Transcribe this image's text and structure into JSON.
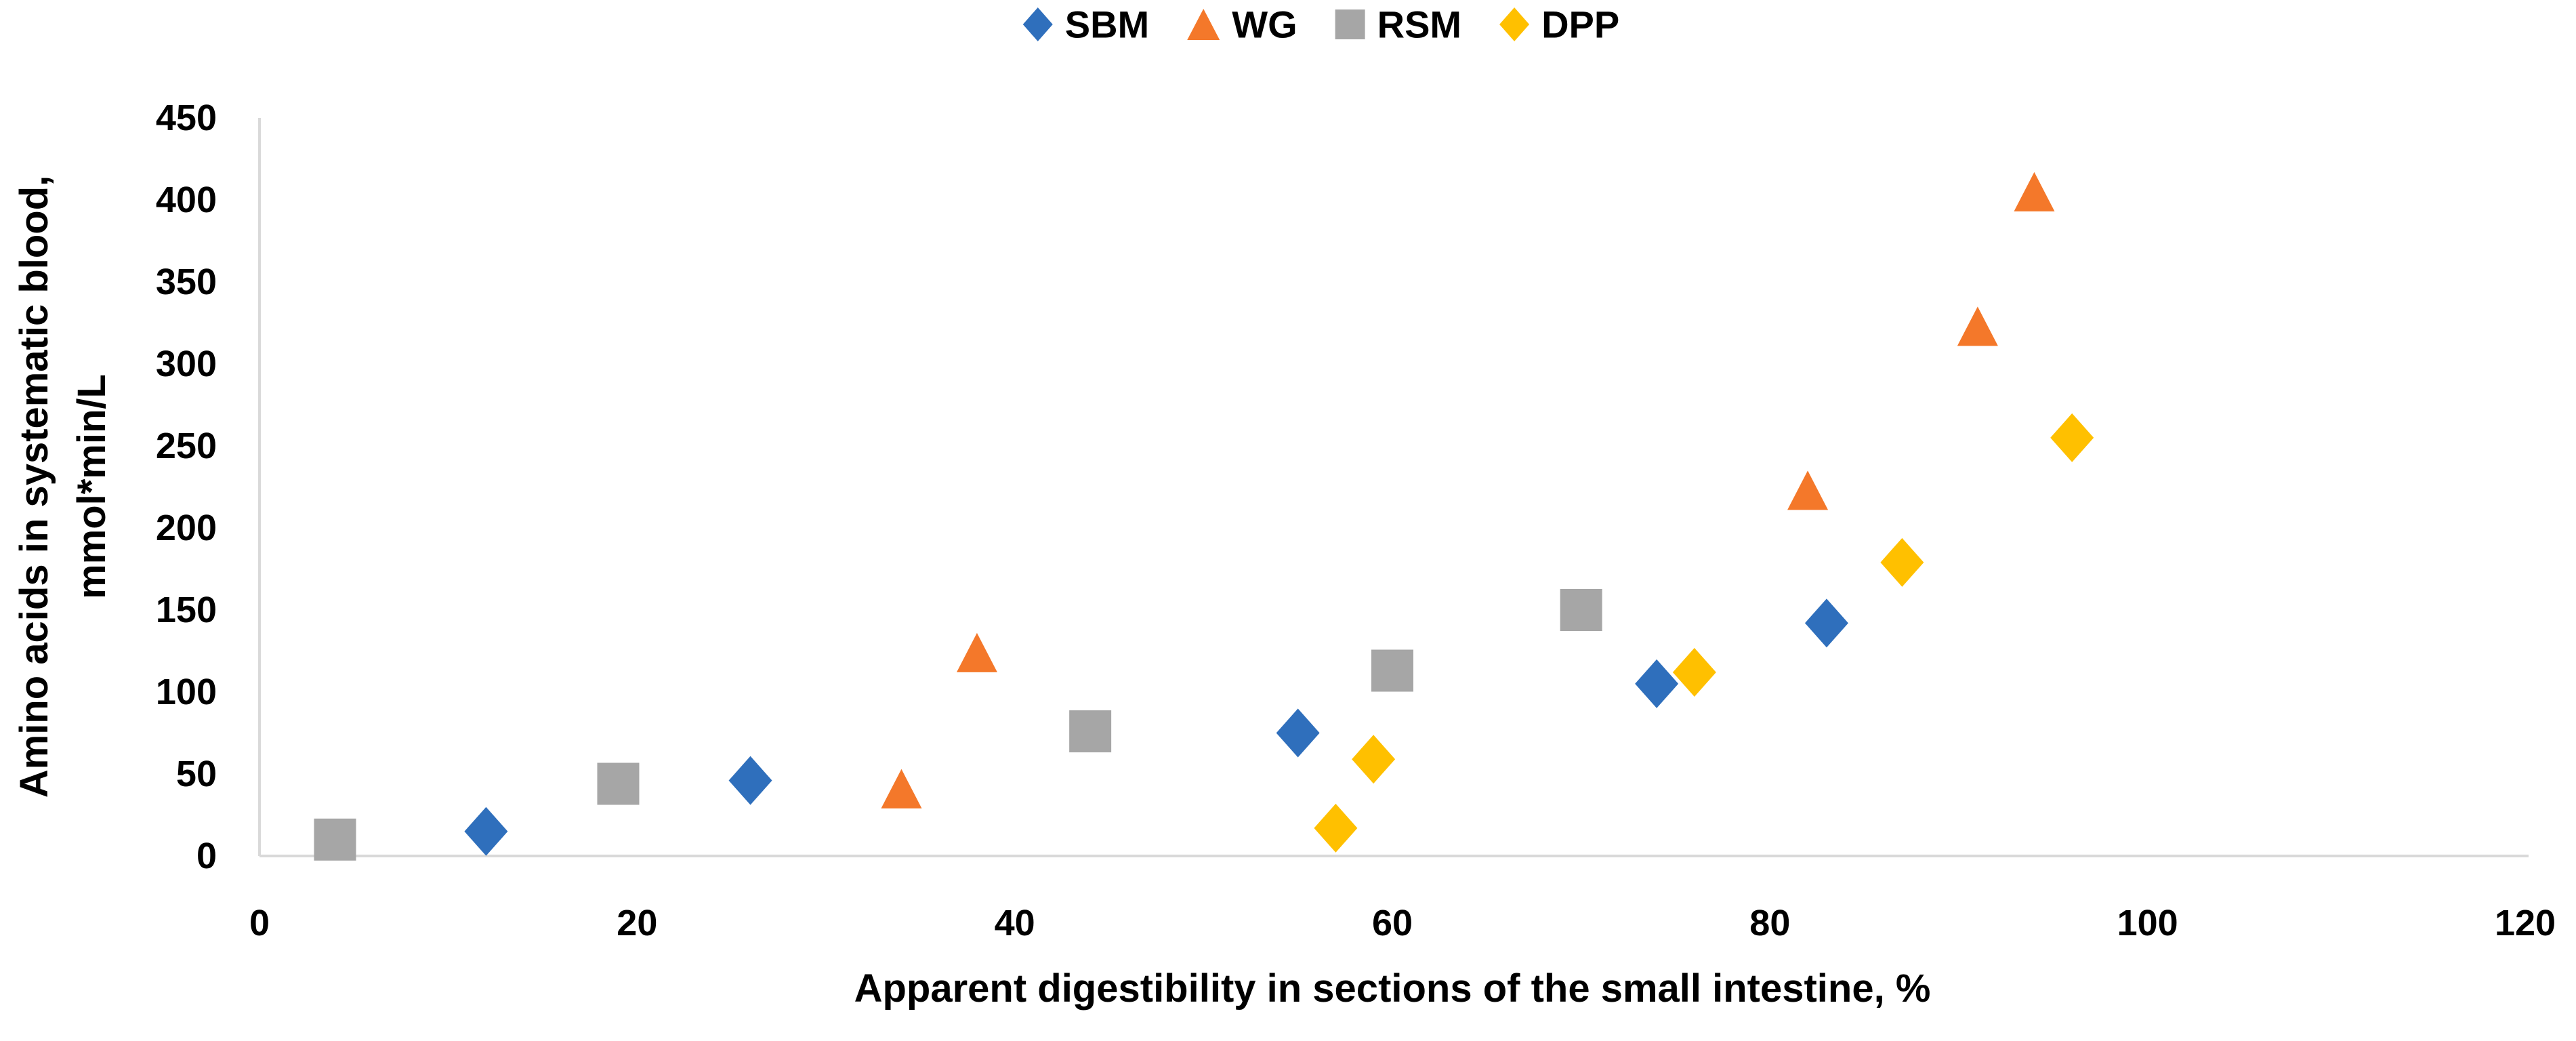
{
  "figure_title": "",
  "chart_data": {
    "type": "scatter",
    "title": "",
    "xlabel": "Apparent digestibility in sections of the small intestine, %",
    "ylabel_line1": "Amino acids in systematic blood,",
    "ylabel_line2": "mmol*min/L",
    "xlim": [
      0,
      120
    ],
    "ylim": [
      0,
      450
    ],
    "xticks": [
      0,
      20,
      40,
      60,
      80,
      100,
      120
    ],
    "yticks": [
      0,
      50,
      100,
      150,
      200,
      250,
      300,
      350,
      400,
      450
    ],
    "grid": false,
    "legend_position": "top-center",
    "axis_line_color": "#D9D9D9",
    "text_color": "#000000",
    "series": [
      {
        "name": "SBM",
        "marker": "diamond",
        "color": "#2F6FBC",
        "points": [
          [
            12,
            15
          ],
          [
            26,
            46
          ],
          [
            55,
            75
          ],
          [
            74,
            105
          ],
          [
            83,
            142
          ]
        ]
      },
      {
        "name": "WG",
        "marker": "triangle",
        "color": "#F4782A",
        "points": [
          [
            34,
            41
          ],
          [
            38,
            124
          ],
          [
            82,
            223
          ],
          [
            91,
            323
          ],
          [
            94,
            405
          ]
        ]
      },
      {
        "name": "RSM",
        "marker": "square",
        "color": "#A6A6A6",
        "points": [
          [
            4,
            10
          ],
          [
            19,
            44
          ],
          [
            44,
            76
          ],
          [
            60,
            113
          ],
          [
            70,
            150
          ]
        ]
      },
      {
        "name": "DPP",
        "marker": "diamond",
        "color": "#FFC000",
        "points": [
          [
            57,
            17
          ],
          [
            59,
            59
          ],
          [
            76,
            112
          ],
          [
            87,
            179
          ],
          [
            96,
            255
          ]
        ]
      }
    ]
  }
}
